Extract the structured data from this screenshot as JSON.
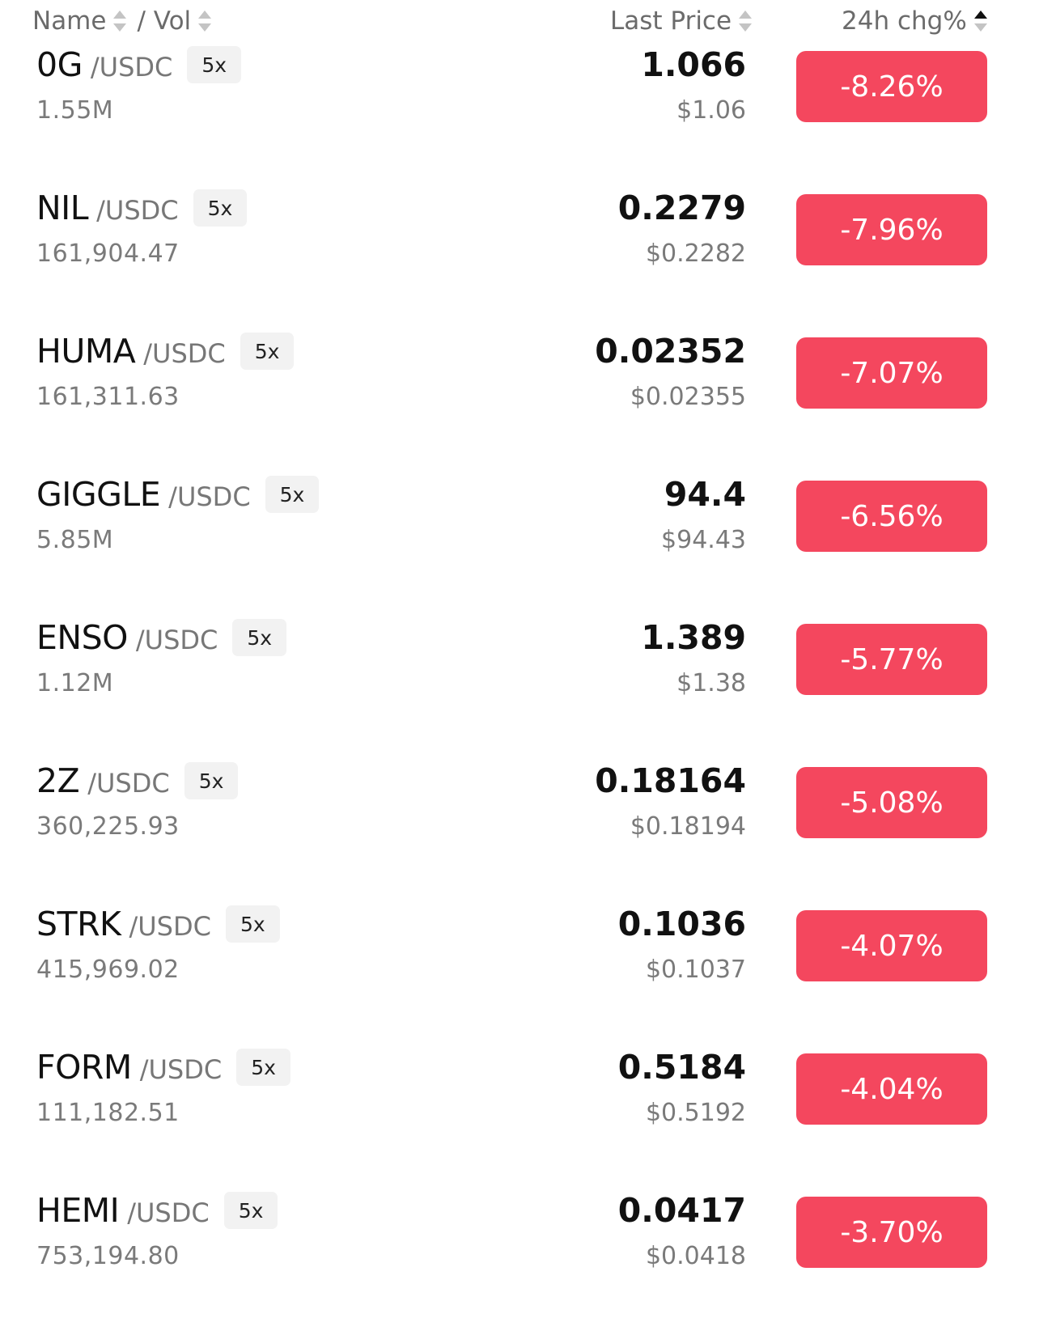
{
  "header": {
    "name": "Name",
    "vol": "/ Vol",
    "last_price": "Last Price",
    "change": "24h chg%"
  },
  "rows": [
    {
      "symbol": "0G",
      "quote": "/USDC",
      "leverage": "5x",
      "volume": "1.55M",
      "price": "1.066",
      "usd_price": "$1.06",
      "change": "-8.26%"
    },
    {
      "symbol": "NIL",
      "quote": "/USDC",
      "leverage": "5x",
      "volume": "161,904.47",
      "price": "0.2279",
      "usd_price": "$0.2282",
      "change": "-7.96%"
    },
    {
      "symbol": "HUMA",
      "quote": "/USDC",
      "leverage": "5x",
      "volume": "161,311.63",
      "price": "0.02352",
      "usd_price": "$0.02355",
      "change": "-7.07%"
    },
    {
      "symbol": "GIGGLE",
      "quote": "/USDC",
      "leverage": "5x",
      "volume": "5.85M",
      "price": "94.4",
      "usd_price": "$94.43",
      "change": "-6.56%"
    },
    {
      "symbol": "ENSO",
      "quote": "/USDC",
      "leverage": "5x",
      "volume": "1.12M",
      "price": "1.389",
      "usd_price": "$1.38",
      "change": "-5.77%"
    },
    {
      "symbol": "2Z",
      "quote": "/USDC",
      "leverage": "5x",
      "volume": "360,225.93",
      "price": "0.18164",
      "usd_price": "$0.18194",
      "change": "-5.08%"
    },
    {
      "symbol": "STRK",
      "quote": "/USDC",
      "leverage": "5x",
      "volume": "415,969.02",
      "price": "0.1036",
      "usd_price": "$0.1037",
      "change": "-4.07%"
    },
    {
      "symbol": "FORM",
      "quote": "/USDC",
      "leverage": "5x",
      "volume": "111,182.51",
      "price": "0.5184",
      "usd_price": "$0.5192",
      "change": "-4.04%"
    },
    {
      "symbol": "HEMI",
      "quote": "/USDC",
      "leverage": "5x",
      "volume": "753,194.80",
      "price": "0.0417",
      "usd_price": "$0.0418",
      "change": "-3.70%"
    }
  ]
}
